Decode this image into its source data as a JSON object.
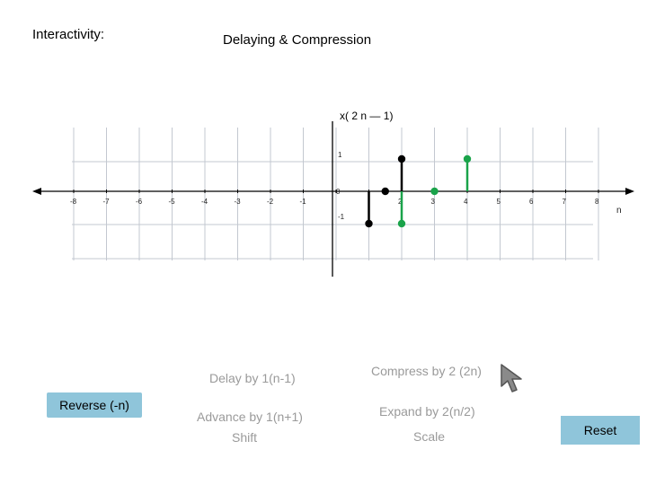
{
  "header": {
    "interactivity_label": "Interactivity:",
    "title": "Delaying & Compression"
  },
  "expression": {
    "prefix": "x(",
    "coef": "2",
    "var": "n",
    "minus": "—",
    "offset": "1",
    "suffix": ")"
  },
  "axis": {
    "x_label": "n",
    "x_ticks": [
      "-8",
      "-7",
      "-6",
      "-5",
      "-4",
      "-3",
      "-2",
      "-1",
      "0",
      "2",
      "3",
      "4",
      "5",
      "6",
      "7",
      "8"
    ],
    "y_ticks": [
      "1",
      "-1"
    ]
  },
  "buttons": {
    "delay": "Delay by 1(n-1)",
    "advance": "Advance by 1(n+1)",
    "shift": "Shift",
    "compress": "Compress by 2 (2n)",
    "expand": "Expand by 2(n/2)",
    "scale": "Scale",
    "reverse": "Reverse (-n)",
    "reset": "Reset"
  },
  "chart_data": {
    "type": "stem",
    "x_range": [
      -8,
      8
    ],
    "y_range": [
      -1,
      1
    ],
    "series": [
      {
        "color": "#000000",
        "x": [
          1,
          1.5,
          2
        ],
        "y": [
          -1,
          0,
          1
        ]
      },
      {
        "color": "#1aa34a",
        "x": [
          2,
          3,
          4
        ],
        "y": [
          -1,
          0,
          1
        ]
      }
    ]
  },
  "colors": {
    "button_bg": "#8fc5da",
    "inactive_text": "#9a9a9a",
    "stem_black": "#000000",
    "stem_green": "#1aa34a"
  }
}
